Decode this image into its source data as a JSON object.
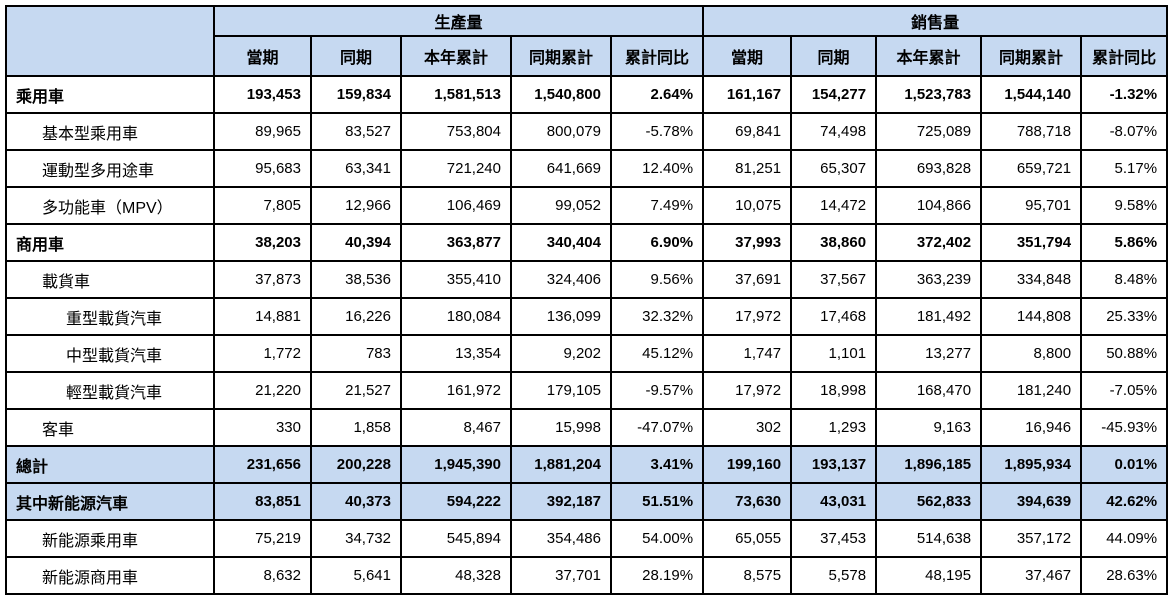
{
  "colors": {
    "header_bg": "#C6D9F1",
    "highlight_row_bg": "#C6D9F1",
    "border": "#000000",
    "text": "#000000"
  },
  "table": {
    "corner_label": "",
    "group_headers": {
      "production": "生產量",
      "sales": "銷售量"
    },
    "sub_columns": [
      "當期",
      "同期",
      "本年累計",
      "同期累計",
      "累計同比"
    ],
    "rows": [
      {
        "label": "乘用車",
        "indent": 0,
        "bold": true,
        "highlight": false,
        "production": [
          "193,453",
          "159,834",
          "1,581,513",
          "1,540,800",
          "2.64%"
        ],
        "sales": [
          "161,167",
          "154,277",
          "1,523,783",
          "1,544,140",
          "-1.32%"
        ]
      },
      {
        "label": "基本型乘用車",
        "indent": 1,
        "bold": false,
        "highlight": false,
        "production": [
          "89,965",
          "83,527",
          "753,804",
          "800,079",
          "-5.78%"
        ],
        "sales": [
          "69,841",
          "74,498",
          "725,089",
          "788,718",
          "-8.07%"
        ]
      },
      {
        "label": "運動型多用途車",
        "indent": 1,
        "bold": false,
        "highlight": false,
        "production": [
          "95,683",
          "63,341",
          "721,240",
          "641,669",
          "12.40%"
        ],
        "sales": [
          "81,251",
          "65,307",
          "693,828",
          "659,721",
          "5.17%"
        ]
      },
      {
        "label": "多功能車（MPV）",
        "indent": 1,
        "bold": false,
        "highlight": false,
        "production": [
          "7,805",
          "12,966",
          "106,469",
          "99,052",
          "7.49%"
        ],
        "sales": [
          "10,075",
          "14,472",
          "104,866",
          "95,701",
          "9.58%"
        ]
      },
      {
        "label": "商用車",
        "indent": 0,
        "bold": true,
        "highlight": false,
        "production": [
          "38,203",
          "40,394",
          "363,877",
          "340,404",
          "6.90%"
        ],
        "sales": [
          "37,993",
          "38,860",
          "372,402",
          "351,794",
          "5.86%"
        ]
      },
      {
        "label": "載貨車",
        "indent": 1,
        "bold": false,
        "highlight": false,
        "production": [
          "37,873",
          "38,536",
          "355,410",
          "324,406",
          "9.56%"
        ],
        "sales": [
          "37,691",
          "37,567",
          "363,239",
          "334,848",
          "8.48%"
        ]
      },
      {
        "label": "重型載貨汽車",
        "indent": 2,
        "bold": false,
        "highlight": false,
        "production": [
          "14,881",
          "16,226",
          "180,084",
          "136,099",
          "32.32%"
        ],
        "sales": [
          "17,972",
          "17,468",
          "181,492",
          "144,808",
          "25.33%"
        ]
      },
      {
        "label": "中型載貨汽車",
        "indent": 2,
        "bold": false,
        "highlight": false,
        "production": [
          "1,772",
          "783",
          "13,354",
          "9,202",
          "45.12%"
        ],
        "sales": [
          "1,747",
          "1,101",
          "13,277",
          "8,800",
          "50.88%"
        ]
      },
      {
        "label": "輕型載貨汽車",
        "indent": 2,
        "bold": false,
        "highlight": false,
        "production": [
          "21,220",
          "21,527",
          "161,972",
          "179,105",
          "-9.57%"
        ],
        "sales": [
          "17,972",
          "18,998",
          "168,470",
          "181,240",
          "-7.05%"
        ]
      },
      {
        "label": "客車",
        "indent": 1,
        "bold": false,
        "highlight": false,
        "production": [
          "330",
          "1,858",
          "8,467",
          "15,998",
          "-47.07%"
        ],
        "sales": [
          "302",
          "1,293",
          "9,163",
          "16,946",
          "-45.93%"
        ]
      },
      {
        "label": "總計",
        "indent": 0,
        "bold": true,
        "highlight": true,
        "production": [
          "231,656",
          "200,228",
          "1,945,390",
          "1,881,204",
          "3.41%"
        ],
        "sales": [
          "199,160",
          "193,137",
          "1,896,185",
          "1,895,934",
          "0.01%"
        ]
      },
      {
        "label": "其中新能源汽車",
        "indent": 0,
        "bold": true,
        "highlight": true,
        "production": [
          "83,851",
          "40,373",
          "594,222",
          "392,187",
          "51.51%"
        ],
        "sales": [
          "73,630",
          "43,031",
          "562,833",
          "394,639",
          "42.62%"
        ]
      },
      {
        "label": "新能源乘用車",
        "indent": 1,
        "bold": false,
        "highlight": false,
        "production": [
          "75,219",
          "34,732",
          "545,894",
          "354,486",
          "54.00%"
        ],
        "sales": [
          "65,055",
          "37,453",
          "514,638",
          "357,172",
          "44.09%"
        ]
      },
      {
        "label": "新能源商用車",
        "indent": 1,
        "bold": false,
        "highlight": false,
        "production": [
          "8,632",
          "5,641",
          "48,328",
          "37,701",
          "28.19%"
        ],
        "sales": [
          "8,575",
          "5,578",
          "48,195",
          "37,467",
          "28.63%"
        ]
      }
    ]
  }
}
